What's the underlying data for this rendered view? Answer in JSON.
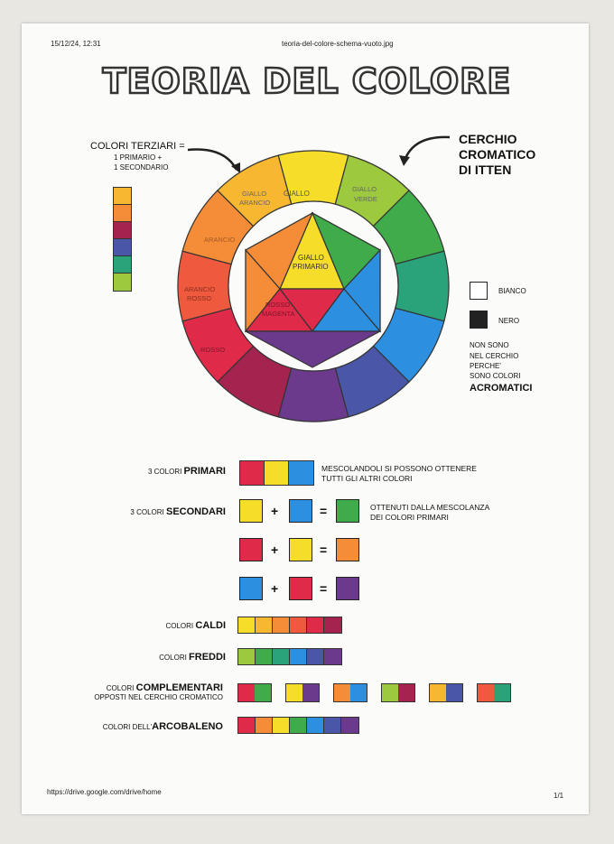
{
  "header": {
    "timestamp": "15/12/24, 12:31",
    "filename": "teoria-del-colore-schema-vuoto.jpg"
  },
  "title": "TEORIA DEL COLORE",
  "tertiary_note": {
    "line1": "COLORI TERZIARI =",
    "line2": "1 PRIMARIO +",
    "line3": "1 SECONDARIO"
  },
  "itten_note": {
    "line1": "CERCHIO",
    "line2": "CROMATICO",
    "line3": "DI ITTEN"
  },
  "wheel_labels": {
    "giallo": "GIALLO",
    "giallo_arancio_1": "GIALLO",
    "giallo_arancio_2": "ARANCIO",
    "giallo_verde_1": "GIALLO",
    "giallo_verde_2": "VERDE",
    "arancio": "ARANCIO",
    "arancio_rosso_1": "ARANCIO",
    "arancio_rosso_2": "ROSSO",
    "rosso": "ROSSO",
    "inner_yellow_1": "GIALLO",
    "inner_yellow_2": "PRIMARIO",
    "inner_red_1": "ROSSO",
    "inner_red_2": "MAGENTA"
  },
  "colors": {
    "yellow": "#f5dd2a",
    "yellow_orange": "#f8b730",
    "orange": "#f58c37",
    "red_orange": "#ef5a3e",
    "red": "#df2a4a",
    "magenta": "#a5244f",
    "purple": "#6b3a8c",
    "blue_purple": "#4a57a8",
    "blue": "#2c8fe0",
    "blue_green": "#2aa37a",
    "green": "#3fab4a",
    "yellow_green": "#9cc93d"
  },
  "acromatic": {
    "bianco": "BIANCO",
    "nero": "NERO",
    "line1": "NON SONO",
    "line2": "NEL CERCHIO",
    "line3": "PERCHE'",
    "line4": "SONO COLORI",
    "line5": "ACROMATICI"
  },
  "rows": {
    "primari_pre": "3 COLORI ",
    "primari_bold": "PRIMARI",
    "primari_desc1": "MESCOLANDOLI SI POSSONO OTTENERE",
    "primari_desc2": "TUTTI GLI ALTRI COLORI",
    "secondari_pre": "3 COLORI ",
    "secondari_bold": "SECONDARI",
    "secondari_desc1": "OTTENUTI DALLA MESCOLANZA",
    "secondari_desc2": "DEI COLORI PRIMARI",
    "plus": "+",
    "equals": "=",
    "caldi_pre": "COLORI ",
    "caldi_bold": "CALDI",
    "freddi_pre": "COLORI ",
    "freddi_bold": "FREDDI",
    "compl_pre": "COLORI ",
    "compl_bold": "COMPLEMENTARI",
    "compl_line2": "OPPOSTI NEL CERCHIO CROMATICO",
    "arco_pre": "COLORI DELL'",
    "arco_bold": "ARCOBALENO"
  },
  "footer": {
    "url": "https://drive.google.com/drive/home",
    "page": "1/1"
  }
}
